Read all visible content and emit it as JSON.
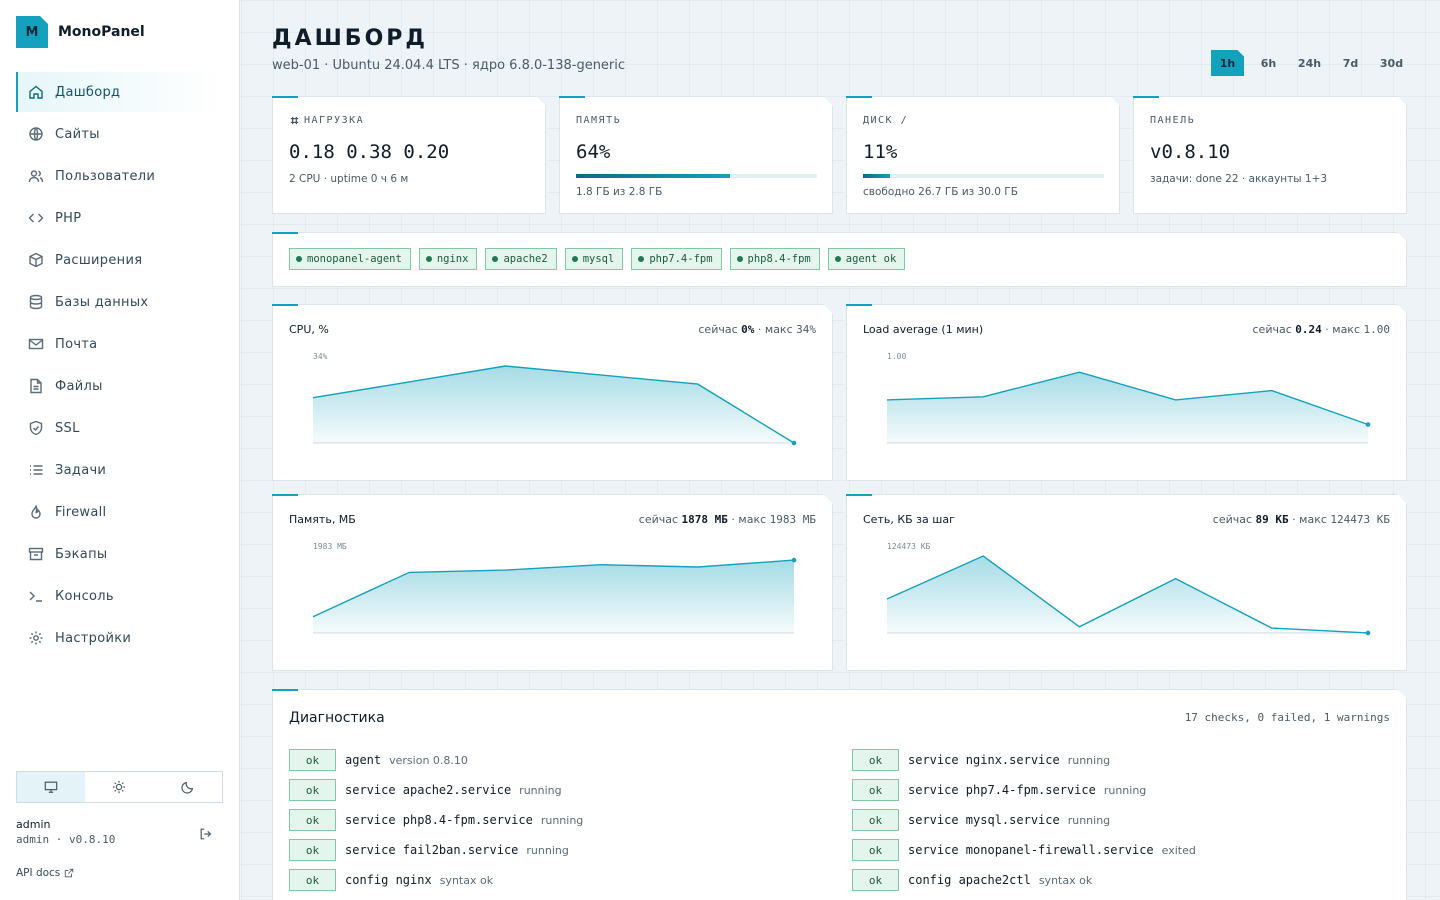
{
  "app": {
    "logo": "M",
    "name": "MonoPanel"
  },
  "nav": [
    {
      "label": "Дашборд",
      "icon": "home-icon",
      "active": true
    },
    {
      "label": "Сайты",
      "icon": "globe-icon"
    },
    {
      "label": "Пользователи",
      "icon": "users-icon"
    },
    {
      "label": "PHP",
      "icon": "code-icon"
    },
    {
      "label": "Расширения",
      "icon": "cube-icon"
    },
    {
      "label": "Базы данных",
      "icon": "database-icon"
    },
    {
      "label": "Почта",
      "icon": "mail-icon"
    },
    {
      "label": "Файлы",
      "icon": "file-icon"
    },
    {
      "label": "SSL",
      "icon": "shield-icon"
    },
    {
      "label": "Задачи",
      "icon": "list-icon"
    },
    {
      "label": "Firewall",
      "icon": "flame-icon"
    },
    {
      "label": "Бэкапы",
      "icon": "archive-icon"
    },
    {
      "label": "Консоль",
      "icon": "terminal-icon"
    },
    {
      "label": "Настройки",
      "icon": "gear-icon"
    }
  ],
  "theme": {
    "options": [
      "monitor-icon",
      "sun-icon",
      "moon-icon"
    ],
    "active": 0
  },
  "user": {
    "name": "admin",
    "meta": "admin · v0.8.10"
  },
  "api_docs": "API docs",
  "header": {
    "title": "ДАШБОРД",
    "subtitle": "web-01 · Ubuntu 24.04.4 LTS · ядро 6.8.0-138-generic"
  },
  "ranges": [
    {
      "label": "1h",
      "active": true
    },
    {
      "label": "6h"
    },
    {
      "label": "24h"
    },
    {
      "label": "7d"
    },
    {
      "label": "30d"
    }
  ],
  "stats": {
    "load": {
      "label": "НАГРУЗКА",
      "value": "0.18 0.38 0.20",
      "note": "2 CPU · uptime 0 ч 6 м"
    },
    "memory": {
      "label": "ПАМЯТЬ",
      "value": "64%",
      "percent": 64,
      "note": "1.8 ГБ из 2.8 ГБ"
    },
    "disk": {
      "label": "ДИСК /",
      "value": "11%",
      "percent": 11,
      "note": "свободно 26.7 ГБ из 30.0 ГБ"
    },
    "panel": {
      "label": "ПАНЕЛЬ",
      "value": "v0.8.10",
      "note": "задачи: done 22 · аккаунты 1+3"
    }
  },
  "services": [
    "monopanel-agent",
    "nginx",
    "apache2",
    "mysql",
    "php7.4-fpm",
    "php8.4-fpm",
    "agent ok"
  ],
  "chart_data": [
    {
      "type": "area",
      "title": "CPU, %",
      "now_label": "сейчас",
      "now": "0%",
      "max_label": "макс",
      "max": "34%",
      "ymax_label": "34%",
      "ymax": 34,
      "values": [
        20,
        27,
        34,
        30,
        26,
        0
      ]
    },
    {
      "type": "area",
      "title": "Load average (1 мин)",
      "now_label": "сейчас",
      "now": "0.24",
      "max_label": "макс",
      "max": "1.00",
      "ymax_label": "1.00",
      "ymax": 1.0,
      "values": [
        0.56,
        0.6,
        0.92,
        0.56,
        0.68,
        0.24
      ]
    },
    {
      "type": "area",
      "title": "Память, МБ",
      "now_label": "сейчас",
      "now": "1878 МБ",
      "max_label": "макс",
      "max": "1983 МБ",
      "ymax_label": "1983 МБ",
      "ymax": 1983,
      "values": [
        420,
        1560,
        1620,
        1760,
        1700,
        1878
      ]
    },
    {
      "type": "area",
      "title": "Сеть, КБ за шаг",
      "now_label": "сейчас",
      "now": "89 КБ",
      "max_label": "макс",
      "max": "124473 КБ",
      "ymax_label": "124473 КБ",
      "ymax": 124473,
      "values": [
        55000,
        124473,
        10000,
        88000,
        8000,
        89
      ]
    }
  ],
  "diagnostics": {
    "title": "Диагностика",
    "summary": "17 checks, 0 failed, 1 warnings",
    "left": [
      {
        "status": "ok",
        "name": "agent",
        "detail": "version 0.8.10"
      },
      {
        "status": "ok",
        "name": "service apache2.service",
        "detail": "running"
      },
      {
        "status": "ok",
        "name": "service php8.4-fpm.service",
        "detail": "running"
      },
      {
        "status": "ok",
        "name": "service fail2ban.service",
        "detail": "running"
      },
      {
        "status": "ok",
        "name": "config nginx",
        "detail": "syntax ok"
      }
    ],
    "right": [
      {
        "status": "ok",
        "name": "service nginx.service",
        "detail": "running"
      },
      {
        "status": "ok",
        "name": "service php7.4-fpm.service",
        "detail": "running"
      },
      {
        "status": "ok",
        "name": "service mysql.service",
        "detail": "running"
      },
      {
        "status": "ok",
        "name": "service monopanel-firewall.service",
        "detail": "exited"
      },
      {
        "status": "ok",
        "name": "config apache2ctl",
        "detail": "syntax ok"
      }
    ]
  },
  "colors": {
    "accent": "#14a1bd",
    "ok_bg": "#e3f5ec",
    "ok_border": "#7fc9a4"
  }
}
